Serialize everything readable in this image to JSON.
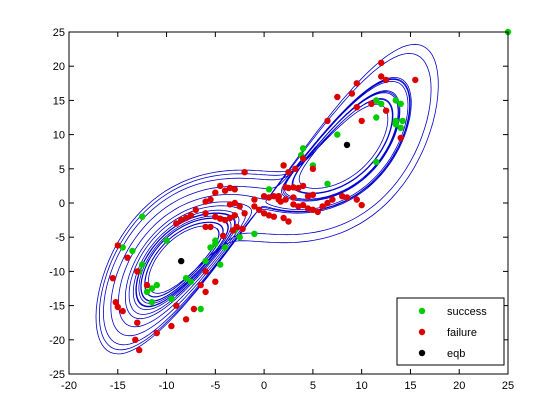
{
  "chart_data": {
    "type": "scatter",
    "title": "",
    "xlabel": "",
    "ylabel": "",
    "xlim": [
      -20,
      25
    ],
    "ylim": [
      -25,
      25
    ],
    "xticks": [
      -20,
      -15,
      -10,
      -5,
      0,
      5,
      10,
      15,
      20,
      25
    ],
    "yticks": [
      -25,
      -20,
      -15,
      -10,
      -5,
      0,
      5,
      10,
      15,
      20,
      25
    ],
    "grid": false,
    "legend_position": "bottom-right",
    "attractor_trajectory": {
      "color": "#0000cc",
      "style": "line"
    },
    "series": [
      {
        "name": "success",
        "color": "#00cc00",
        "points": [
          [
            25,
            25
          ],
          [
            11.5,
            15
          ],
          [
            12,
            14.5
          ],
          [
            13.5,
            15
          ],
          [
            14,
            14.5
          ],
          [
            14.2,
            12
          ],
          [
            13.5,
            12
          ],
          [
            11.5,
            12.5
          ],
          [
            14,
            11
          ],
          [
            13.5,
            11.5
          ],
          [
            11.5,
            6
          ],
          [
            7.5,
            10
          ],
          [
            6.5,
            2.8
          ],
          [
            5,
            5.5
          ],
          [
            2,
            5.5
          ],
          [
            1.5,
            1
          ],
          [
            -3,
            -4
          ],
          [
            -1,
            -4.5
          ],
          [
            -5,
            -6
          ],
          [
            -5.5,
            -6.5
          ],
          [
            -4.5,
            -9
          ],
          [
            -6,
            -8.5
          ],
          [
            -8,
            -11
          ],
          [
            -7.5,
            -11.5
          ],
          [
            -11,
            -12
          ],
          [
            -11.5,
            -12.5
          ],
          [
            -12,
            -13
          ],
          [
            -11.5,
            -14.5
          ],
          [
            -12.5,
            -9
          ],
          [
            -9.5,
            -14
          ],
          [
            -9,
            -15
          ],
          [
            -10,
            -5.5
          ],
          [
            -12.5,
            -2
          ],
          [
            -13.5,
            -7
          ],
          [
            -12.8,
            -10
          ],
          [
            -5,
            -5.5
          ],
          [
            -4,
            -6.5
          ],
          [
            -2.5,
            -5
          ],
          [
            -6.5,
            -15.5
          ],
          [
            -14.5,
            -6.5
          ],
          [
            4,
            8
          ],
          [
            3.8,
            7
          ],
          [
            0.5,
            2
          ]
        ]
      },
      {
        "name": "failure",
        "color": "#dd0000",
        "points": [
          [
            12,
            20.5
          ],
          [
            12,
            18.5
          ],
          [
            12.5,
            18
          ],
          [
            15.5,
            18
          ],
          [
            9.5,
            17.5
          ],
          [
            9,
            16
          ],
          [
            7.5,
            15.5
          ],
          [
            11,
            14.5
          ],
          [
            9.5,
            14
          ],
          [
            12.5,
            13.5
          ],
          [
            10,
            12
          ],
          [
            6.5,
            12
          ],
          [
            14,
            9.5
          ],
          [
            5,
            5
          ],
          [
            2.5,
            4.5
          ],
          [
            3.2,
            5
          ],
          [
            4,
            6.5
          ],
          [
            2,
            5.5
          ],
          [
            1.5,
            1
          ],
          [
            2.2,
            2.3
          ],
          [
            2.5,
            2.2
          ],
          [
            3,
            2.3
          ],
          [
            3.5,
            2.2
          ],
          [
            4,
            2.5
          ],
          [
            5,
            1.2
          ],
          [
            4.5,
            1
          ],
          [
            3,
            0.8
          ],
          [
            -2,
            4.5
          ],
          [
            -3,
            2
          ],
          [
            -3.5,
            2.2
          ],
          [
            -4,
            1.8
          ],
          [
            -4.5,
            2.5
          ],
          [
            -5,
            1.5
          ],
          [
            -5.5,
            0.5
          ],
          [
            -6,
            0.2
          ],
          [
            -3.5,
            -0.2
          ],
          [
            -3,
            0
          ],
          [
            -2.5,
            -0.5
          ],
          [
            -1,
            0.5
          ],
          [
            0,
            1
          ],
          [
            0.5,
            0.8
          ],
          [
            1,
            1
          ],
          [
            1.5,
            0.5
          ],
          [
            1.7,
            0.2
          ],
          [
            2.2,
            0.5
          ],
          [
            3,
            -0.2
          ],
          [
            3.5,
            -0.5
          ],
          [
            4,
            -0.3
          ],
          [
            4.5,
            -0.8
          ],
          [
            5,
            -1
          ],
          [
            5.5,
            -1.3
          ],
          [
            6,
            -0.5
          ],
          [
            6.5,
            0
          ],
          [
            7,
            0.5
          ],
          [
            8,
            1
          ],
          [
            8.5,
            0.8
          ],
          [
            9.5,
            0.5
          ],
          [
            10,
            -0.3
          ],
          [
            -1,
            -0.5
          ],
          [
            -0.5,
            -1
          ],
          [
            0,
            -1.5
          ],
          [
            0.5,
            -1.8
          ],
          [
            1,
            -2
          ],
          [
            2,
            -2.2
          ],
          [
            2.5,
            -2.7
          ],
          [
            -2,
            -1.5
          ],
          [
            -3,
            -1.8
          ],
          [
            -3.5,
            -2.2
          ],
          [
            -4,
            -2.5
          ],
          [
            -4.5,
            -2.3
          ],
          [
            -5,
            -2
          ],
          [
            -6,
            -1.5
          ],
          [
            -7,
            -1
          ],
          [
            -7.5,
            -1.8
          ],
          [
            -8,
            -2.2
          ],
          [
            -8.5,
            -2.5
          ],
          [
            -9,
            -3
          ],
          [
            -6,
            -3.5
          ],
          [
            -5.5,
            -3.5
          ],
          [
            -4.2,
            -4.8
          ],
          [
            -3.2,
            -4
          ],
          [
            -2.8,
            -3.5
          ],
          [
            -2.2,
            -3.8
          ],
          [
            -15,
            -6.2
          ],
          [
            -14,
            -8
          ],
          [
            -13,
            -10
          ],
          [
            -12,
            -12
          ],
          [
            -15.5,
            -11
          ],
          [
            -15.2,
            -14.5
          ],
          [
            -15,
            -15.2
          ],
          [
            -14.5,
            -15.8
          ],
          [
            -13,
            -17.5
          ],
          [
            -13.2,
            -20
          ],
          [
            -12.8,
            -21.5
          ],
          [
            -11,
            -19
          ],
          [
            -9.5,
            -18
          ],
          [
            -8,
            -17
          ],
          [
            -7.2,
            -15.5
          ],
          [
            -6,
            -13
          ],
          [
            -5,
            -11.5
          ],
          [
            -6,
            -10
          ],
          [
            -6.5,
            -12
          ],
          [
            -9,
            -15
          ]
        ]
      },
      {
        "name": "eqb",
        "color": "#000000",
        "points": [
          [
            8.5,
            8.5
          ],
          [
            -8.5,
            -8.5
          ]
        ]
      }
    ]
  },
  "legend": {
    "entries": [
      {
        "label": "success",
        "color": "#00cc00"
      },
      {
        "label": "failure",
        "color": "#dd0000"
      },
      {
        "label": "eqb",
        "color": "#000000"
      }
    ]
  }
}
